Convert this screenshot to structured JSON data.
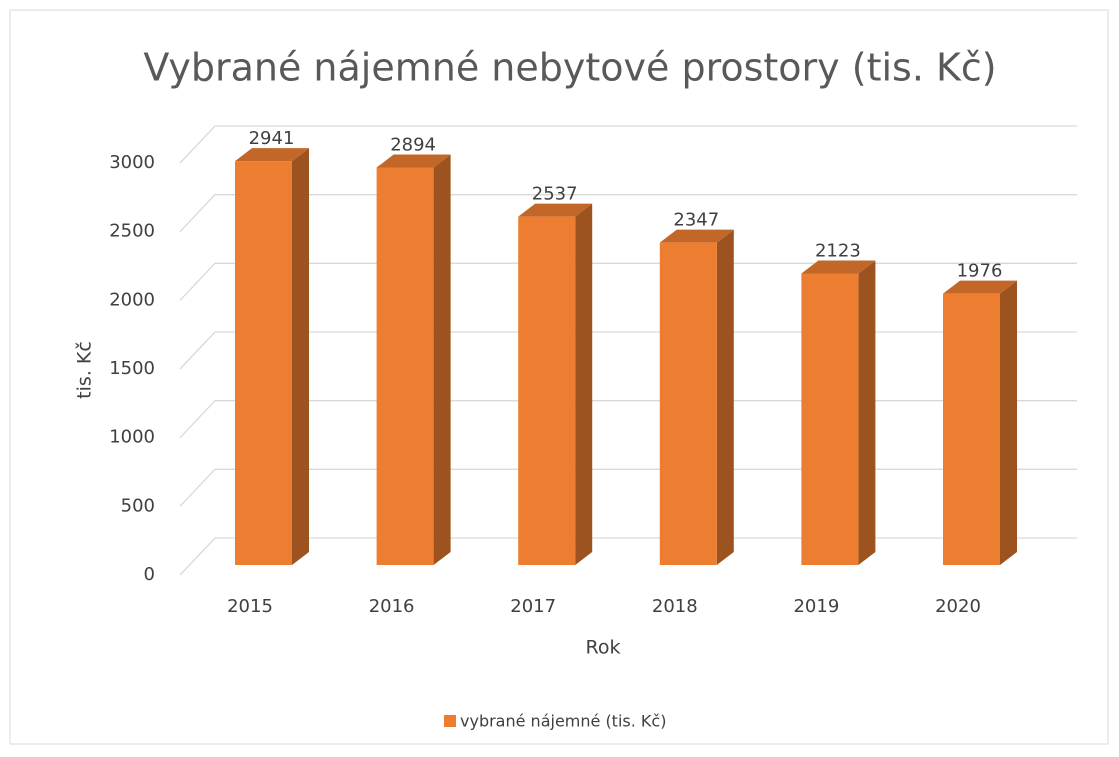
{
  "chart_data": {
    "type": "bar3d",
    "title": "Vybrané nájemné nebytové prostory (tis. Kč)",
    "y_label": "tis. Kč",
    "x_label": "Rok",
    "categories": [
      "2015",
      "2016",
      "2017",
      "2018",
      "2019",
      "2020"
    ],
    "series": [
      {
        "name": "vybrané nájemné (tis. Kč)",
        "color": "#ed7d31",
        "values": [
          2941,
          2894,
          2537,
          2347,
          2123,
          1976
        ]
      }
    ],
    "ylim": [
      0,
      3000
    ],
    "yticks": [
      0,
      500,
      1000,
      1500,
      2000,
      2500,
      3000
    ],
    "grid": true,
    "legend": "bottom"
  }
}
